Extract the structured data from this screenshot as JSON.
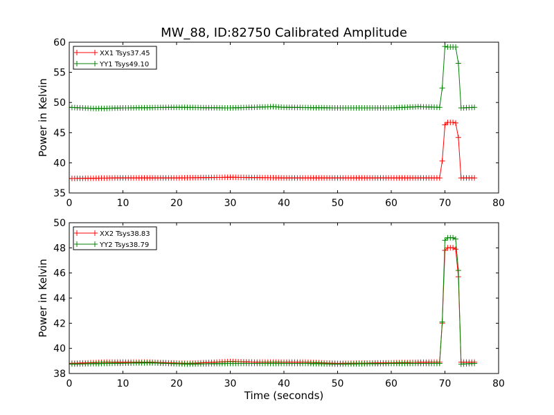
{
  "title": "MW_88, ID:82750 Calibrated Amplitude",
  "xlabel": "Time (seconds)",
  "chart_data": [
    {
      "type": "line",
      "title": "MW_88, ID:82750 Calibrated Amplitude",
      "xlabel": "",
      "ylabel": "Power in Kelvin",
      "xlim": [
        0,
        80
      ],
      "ylim": [
        35,
        60
      ],
      "xticks": [
        0,
        10,
        20,
        30,
        40,
        50,
        60,
        70,
        80
      ],
      "yticks": [
        35,
        40,
        45,
        50,
        55,
        60
      ],
      "legend_loc": "upper left",
      "grid": false,
      "marker": "+",
      "series": [
        {
          "name": "XX1 Tsys37.45",
          "color": "#ff0000",
          "step": 0.5,
          "x_start": 0,
          "x_end": 75.5,
          "baseline": 37.45,
          "baseline_drift": [
            [
              0,
              37.4
            ],
            [
              10,
              37.5
            ],
            [
              20,
              37.5
            ],
            [
              30,
              37.6
            ],
            [
              40,
              37.5
            ],
            [
              50,
              37.5
            ],
            [
              60,
              37.5
            ],
            [
              69,
              37.5
            ]
          ],
          "transition": [
            [
              69,
              37.5
            ],
            [
              69.5,
              40.3
            ],
            [
              70,
              46.3
            ],
            [
              70.5,
              46.7
            ],
            [
              71,
              46.7
            ],
            [
              71.5,
              46.7
            ],
            [
              72,
              46.6
            ],
            [
              72.5,
              44.2
            ],
            [
              73,
              37.5
            ],
            [
              75.5,
              37.5
            ]
          ]
        },
        {
          "name": "YY1 Tsys49.10",
          "color": "#008000",
          "step": 0.5,
          "x_start": 0,
          "x_end": 75.5,
          "baseline": 49.1,
          "baseline_drift": [
            [
              0,
              49.2
            ],
            [
              5,
              49.0
            ],
            [
              10,
              49.1
            ],
            [
              20,
              49.2
            ],
            [
              30,
              49.1
            ],
            [
              38,
              49.3
            ],
            [
              40,
              49.2
            ],
            [
              50,
              49.1
            ],
            [
              60,
              49.1
            ],
            [
              65,
              49.3
            ],
            [
              69,
              49.2
            ]
          ],
          "transition": [
            [
              69,
              49.2
            ],
            [
              69.5,
              52.4
            ],
            [
              70,
              59.3
            ],
            [
              70.5,
              59.2
            ],
            [
              71,
              59.2
            ],
            [
              71.5,
              59.2
            ],
            [
              72,
              59.2
            ],
            [
              72.5,
              56.5
            ],
            [
              73,
              49.1
            ],
            [
              75.5,
              49.2
            ]
          ]
        }
      ]
    },
    {
      "type": "line",
      "title": "",
      "xlabel": "Time (seconds)",
      "ylabel": "Power in Kelvin",
      "xlim": [
        0,
        80
      ],
      "ylim": [
        38,
        50
      ],
      "xticks": [
        0,
        10,
        20,
        30,
        40,
        50,
        60,
        70,
        80
      ],
      "yticks": [
        38,
        40,
        42,
        44,
        46,
        48,
        50
      ],
      "legend_loc": "upper left",
      "grid": false,
      "marker": "+",
      "series": [
        {
          "name": "XX2 Tsys38.83",
          "color": "#ff0000",
          "step": 0.5,
          "x_start": 0,
          "x_end": 75.5,
          "baseline": 38.83,
          "baseline_drift": [
            [
              0,
              38.8
            ],
            [
              7,
              38.9
            ],
            [
              15,
              38.9
            ],
            [
              22,
              38.8
            ],
            [
              30,
              38.95
            ],
            [
              35,
              38.9
            ],
            [
              44,
              38.9
            ],
            [
              50,
              38.8
            ],
            [
              60,
              38.85
            ],
            [
              67,
              38.9
            ],
            [
              69,
              38.9
            ]
          ],
          "transition": [
            [
              69,
              38.9
            ],
            [
              69.5,
              42.0
            ],
            [
              70,
              47.8
            ],
            [
              70.5,
              48.0
            ],
            [
              71,
              48.0
            ],
            [
              71.5,
              48.0
            ],
            [
              72,
              47.9
            ],
            [
              72.5,
              45.7
            ],
            [
              73,
              38.9
            ],
            [
              75.5,
              38.9
            ]
          ]
        },
        {
          "name": "YY2 Tsys38.79",
          "color": "#008000",
          "step": 0.5,
          "x_start": 0,
          "x_end": 75.5,
          "baseline": 38.79,
          "baseline_drift": [
            [
              0,
              38.75
            ],
            [
              7,
              38.8
            ],
            [
              15,
              38.85
            ],
            [
              22,
              38.75
            ],
            [
              30,
              38.8
            ],
            [
              35,
              38.8
            ],
            [
              44,
              38.8
            ],
            [
              50,
              38.75
            ],
            [
              60,
              38.8
            ],
            [
              67,
              38.8
            ],
            [
              69,
              38.8
            ]
          ],
          "transition": [
            [
              69,
              38.8
            ],
            [
              69.5,
              42.1
            ],
            [
              70,
              48.6
            ],
            [
              70.5,
              48.8
            ],
            [
              71,
              48.8
            ],
            [
              71.5,
              48.8
            ],
            [
              72,
              48.7
            ],
            [
              72.5,
              46.2
            ],
            [
              73,
              38.75
            ],
            [
              75.5,
              38.8
            ]
          ]
        }
      ]
    }
  ]
}
